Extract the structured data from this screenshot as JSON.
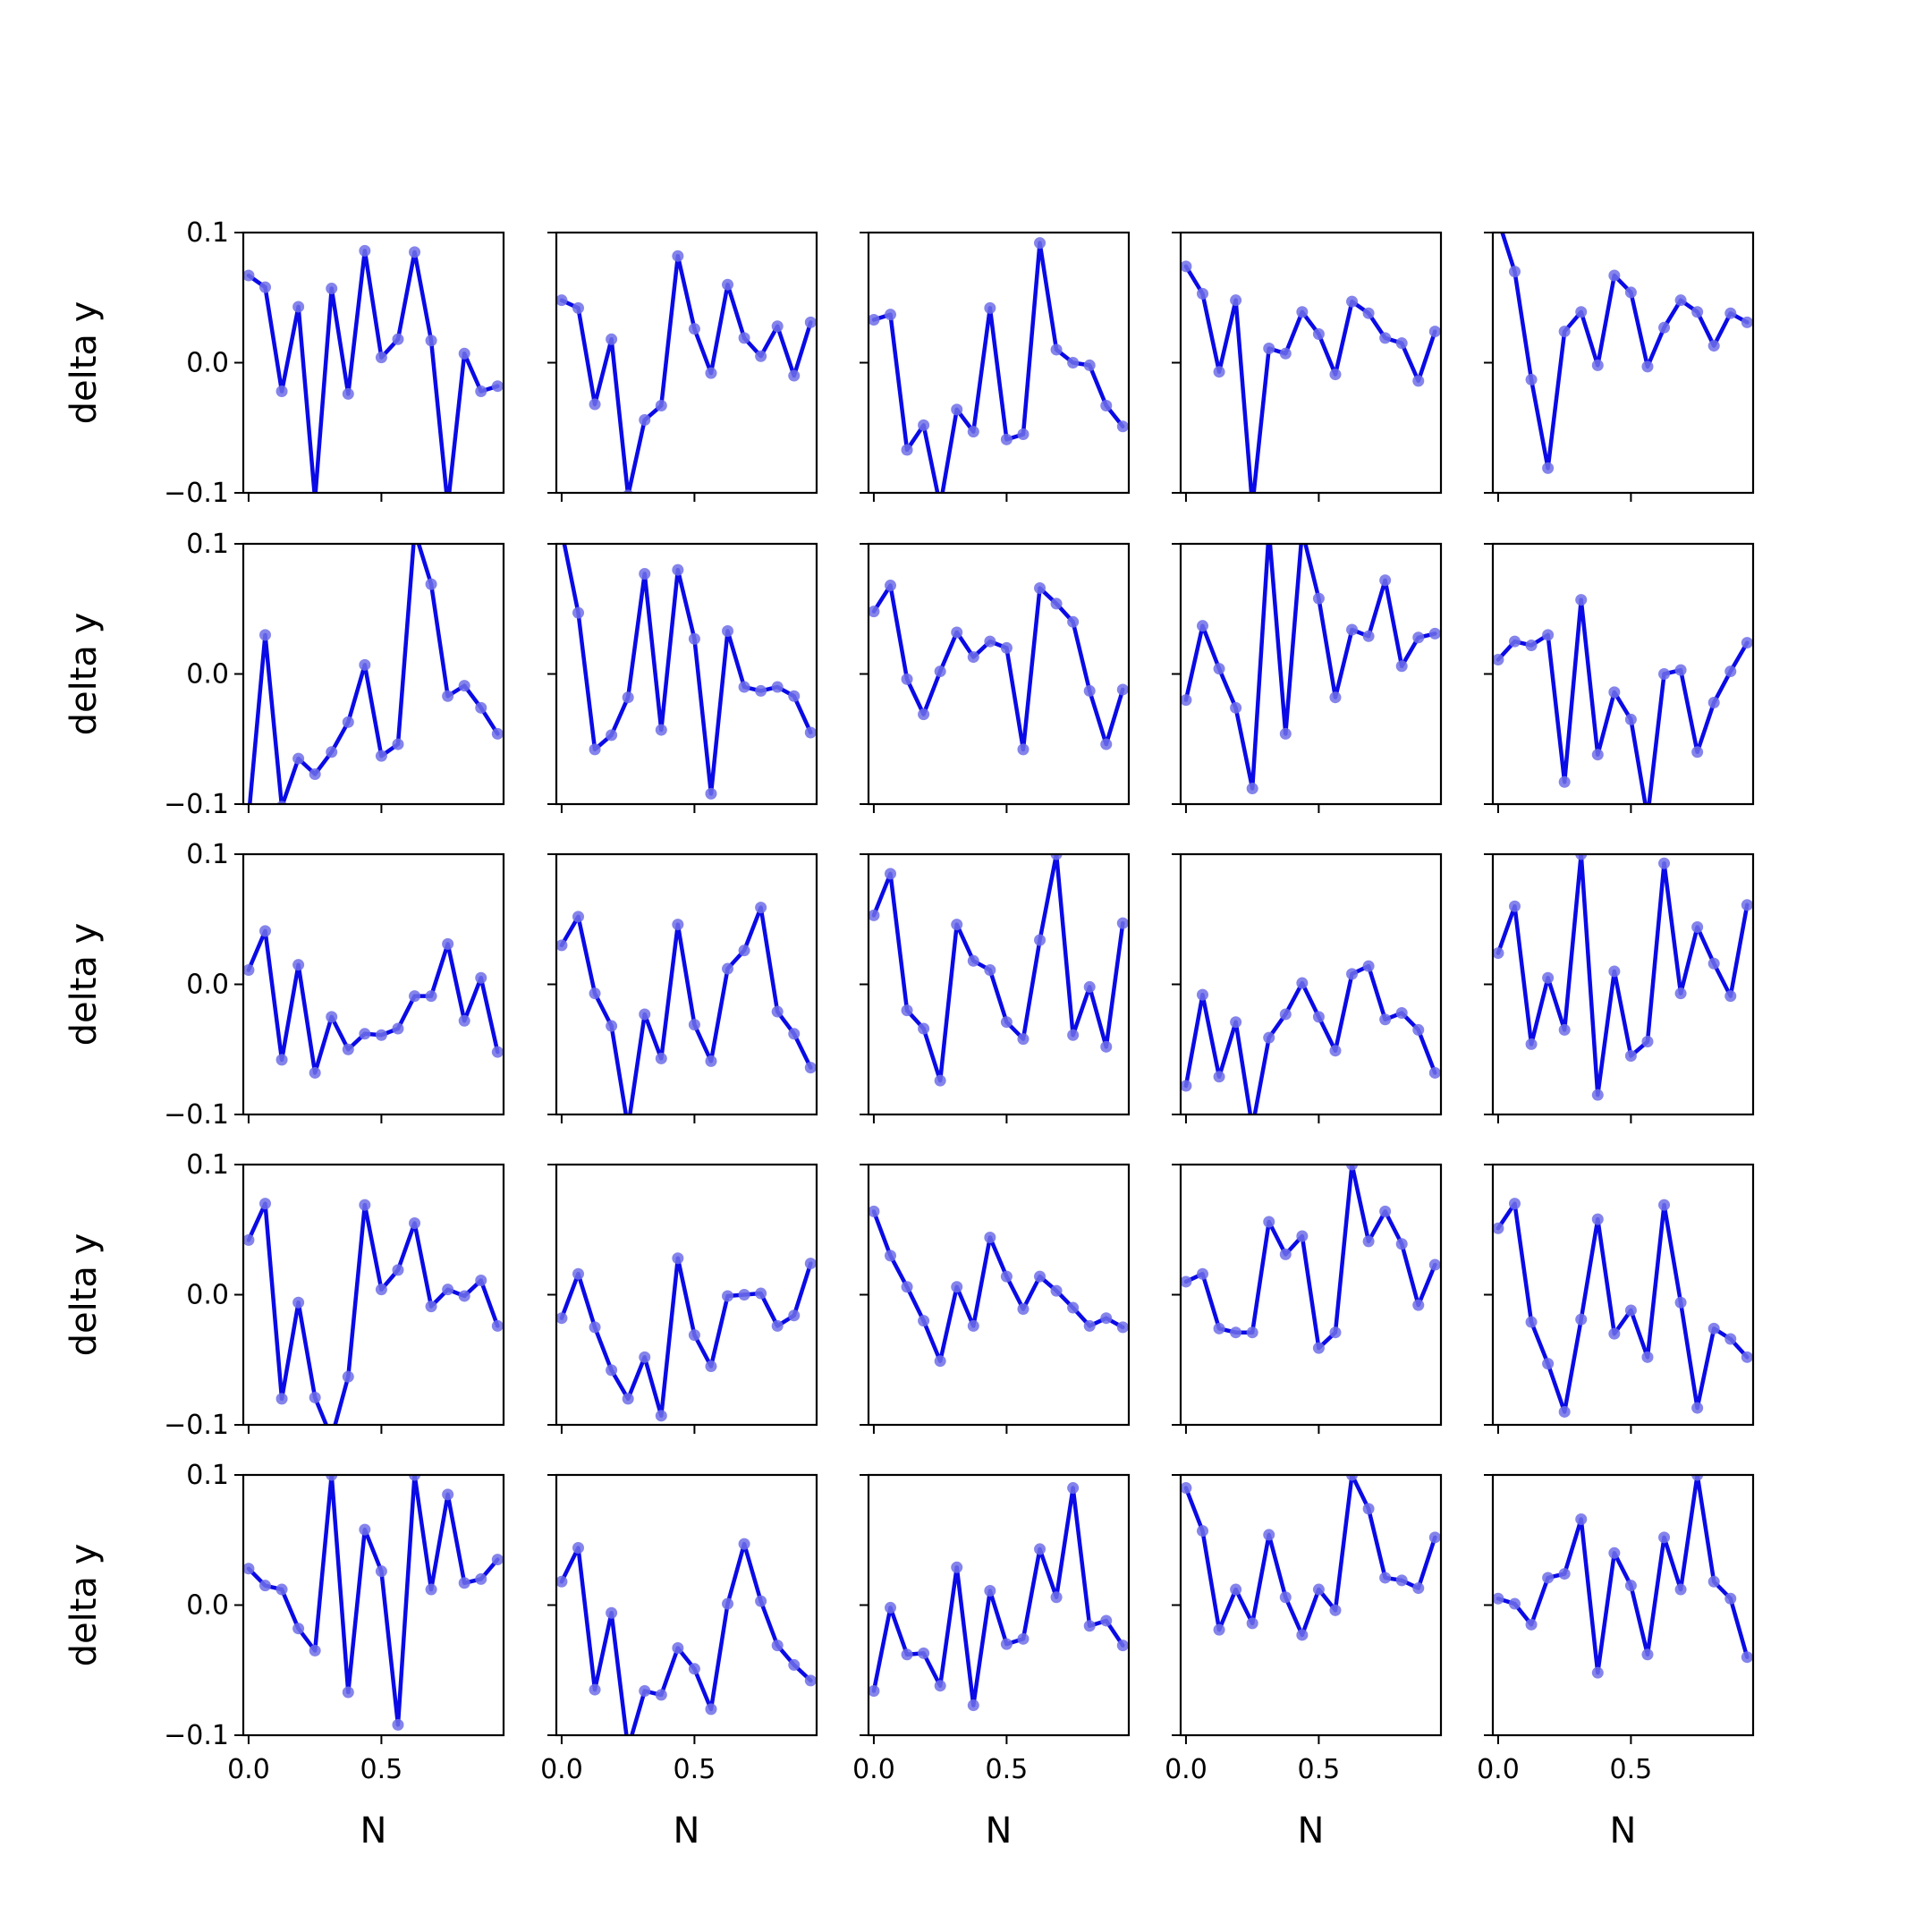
{
  "chart_data": {
    "type": "line",
    "layout": {
      "rows": 5,
      "cols": 5
    },
    "x": [
      0.0,
      0.0625,
      0.125,
      0.1875,
      0.25,
      0.3125,
      0.375,
      0.4375,
      0.5,
      0.5625,
      0.625,
      0.6875,
      0.75,
      0.8125,
      0.875,
      0.9375
    ],
    "xlim": [
      -0.02,
      0.96
    ],
    "ylim": [
      -0.1,
      0.1
    ],
    "xticks": [
      0.0,
      0.5
    ],
    "xtick_labels": [
      "0.0",
      "0.5"
    ],
    "yticks": [
      -0.1,
      0.0,
      0.1
    ],
    "ytick_labels": [
      "−0.1",
      "0.0",
      "0.1"
    ],
    "xlabel": "N",
    "ylabel": "delta y",
    "line_color": "#0a0ae6",
    "marker_color": "#6f6fe8",
    "grid": false,
    "legend": "none",
    "panels": [
      {
        "values": [
          0.067,
          0.058,
          -0.022,
          0.043,
          -0.105,
          0.057,
          -0.024,
          0.086,
          0.004,
          0.018,
          0.085,
          0.017,
          -0.11,
          0.007,
          -0.022,
          -0.018
        ]
      },
      {
        "values": [
          0.048,
          0.042,
          -0.032,
          0.018,
          -0.102,
          -0.044,
          -0.033,
          0.082,
          0.026,
          -0.008,
          0.06,
          0.019,
          0.005,
          0.028,
          -0.01,
          0.031
        ]
      },
      {
        "values": [
          0.033,
          0.037,
          -0.067,
          -0.048,
          -0.11,
          -0.036,
          -0.053,
          0.042,
          -0.059,
          -0.055,
          0.092,
          0.01,
          0.0,
          -0.002,
          -0.033,
          -0.049
        ]
      },
      {
        "values": [
          0.074,
          0.053,
          -0.007,
          0.048,
          -0.11,
          0.011,
          0.007,
          0.039,
          0.022,
          -0.009,
          0.047,
          0.038,
          0.019,
          0.015,
          -0.014,
          0.024
        ]
      },
      {
        "values": [
          0.11,
          0.07,
          -0.013,
          -0.081,
          0.024,
          0.039,
          -0.002,
          0.067,
          0.054,
          -0.003,
          0.027,
          0.048,
          0.039,
          0.013,
          0.038,
          0.031
        ]
      },
      {
        "values": [
          -0.11,
          0.03,
          -0.102,
          -0.065,
          -0.077,
          -0.06,
          -0.037,
          0.007,
          -0.063,
          -0.054,
          0.11,
          0.069,
          -0.017,
          -0.009,
          -0.026,
          -0.046
        ]
      },
      {
        "values": [
          0.11,
          0.047,
          -0.058,
          -0.047,
          -0.018,
          0.077,
          -0.043,
          0.08,
          0.027,
          -0.092,
          0.033,
          -0.01,
          -0.013,
          -0.01,
          -0.017,
          -0.045
        ]
      },
      {
        "values": [
          0.048,
          0.068,
          -0.004,
          -0.031,
          0.002,
          0.032,
          0.013,
          0.025,
          0.02,
          -0.058,
          0.066,
          0.054,
          0.04,
          -0.013,
          -0.054,
          -0.012
        ]
      },
      {
        "values": [
          -0.02,
          0.037,
          0.004,
          -0.026,
          -0.088,
          0.11,
          -0.046,
          0.11,
          0.058,
          -0.018,
          0.034,
          0.029,
          0.072,
          0.006,
          0.028,
          0.031
        ]
      },
      {
        "values": [
          0.011,
          0.025,
          0.022,
          0.03,
          -0.083,
          0.057,
          -0.062,
          -0.014,
          -0.035,
          -0.11,
          0.0,
          0.003,
          -0.06,
          -0.022,
          0.002,
          0.024
        ]
      },
      {
        "values": [
          0.011,
          0.041,
          -0.058,
          0.015,
          -0.068,
          -0.025,
          -0.05,
          -0.038,
          -0.039,
          -0.034,
          -0.009,
          -0.009,
          0.031,
          -0.028,
          0.005,
          -0.052
        ]
      },
      {
        "values": [
          0.03,
          0.052,
          -0.007,
          -0.032,
          -0.11,
          -0.023,
          -0.057,
          0.046,
          -0.031,
          -0.059,
          0.012,
          0.026,
          0.059,
          -0.021,
          -0.038,
          -0.064
        ]
      },
      {
        "values": [
          0.053,
          0.085,
          -0.02,
          -0.034,
          -0.074,
          0.046,
          0.018,
          0.011,
          -0.029,
          -0.042,
          0.034,
          0.1,
          -0.039,
          -0.002,
          -0.048,
          0.047
        ]
      },
      {
        "values": [
          -0.078,
          -0.008,
          -0.071,
          -0.029,
          -0.11,
          -0.041,
          -0.023,
          0.001,
          -0.025,
          -0.051,
          0.008,
          0.014,
          -0.027,
          -0.022,
          -0.035,
          -0.068
        ]
      },
      {
        "values": [
          0.024,
          0.06,
          -0.046,
          0.005,
          -0.035,
          0.1,
          -0.085,
          0.01,
          -0.055,
          -0.044,
          0.093,
          -0.007,
          0.044,
          0.016,
          -0.009,
          0.061
        ]
      },
      {
        "values": [
          0.042,
          0.07,
          -0.08,
          -0.006,
          -0.079,
          -0.11,
          -0.063,
          0.069,
          0.004,
          0.019,
          0.055,
          -0.009,
          0.004,
          -0.001,
          0.011,
          -0.024
        ]
      },
      {
        "values": [
          -0.018,
          0.016,
          -0.025,
          -0.058,
          -0.08,
          -0.048,
          -0.093,
          0.028,
          -0.031,
          -0.055,
          -0.001,
          0.0,
          0.001,
          -0.024,
          -0.016,
          0.024
        ]
      },
      {
        "values": [
          0.064,
          0.03,
          0.006,
          -0.02,
          -0.051,
          0.006,
          -0.024,
          0.044,
          0.014,
          -0.011,
          0.014,
          0.003,
          -0.01,
          -0.024,
          -0.018,
          -0.025
        ]
      },
      {
        "values": [
          0.01,
          0.016,
          -0.026,
          -0.029,
          -0.029,
          0.056,
          0.031,
          0.045,
          -0.041,
          -0.029,
          0.1,
          0.041,
          0.064,
          0.039,
          -0.008,
          0.023
        ]
      },
      {
        "values": [
          0.051,
          0.07,
          -0.021,
          -0.053,
          -0.09,
          -0.019,
          0.058,
          -0.03,
          -0.012,
          -0.048,
          0.069,
          -0.006,
          -0.087,
          -0.026,
          -0.034,
          -0.048
        ]
      },
      {
        "values": [
          0.028,
          0.015,
          0.012,
          -0.018,
          -0.035,
          0.1,
          -0.067,
          0.058,
          0.026,
          -0.092,
          0.1,
          0.012,
          0.085,
          0.017,
          0.02,
          0.035
        ]
      },
      {
        "values": [
          0.018,
          0.044,
          -0.065,
          -0.006,
          -0.11,
          -0.066,
          -0.069,
          -0.033,
          -0.049,
          -0.08,
          0.001,
          0.047,
          0.003,
          -0.031,
          -0.046,
          -0.058
        ]
      },
      {
        "values": [
          -0.066,
          -0.002,
          -0.038,
          -0.037,
          -0.062,
          0.029,
          -0.077,
          0.011,
          -0.03,
          -0.026,
          0.043,
          0.006,
          0.09,
          -0.016,
          -0.012,
          -0.031
        ]
      },
      {
        "values": [
          0.09,
          0.057,
          -0.019,
          0.012,
          -0.014,
          0.054,
          0.006,
          -0.023,
          0.012,
          -0.004,
          0.1,
          0.074,
          0.021,
          0.019,
          0.013,
          0.052
        ]
      },
      {
        "values": [
          0.005,
          0.001,
          -0.015,
          0.021,
          0.024,
          0.066,
          -0.052,
          0.04,
          0.015,
          -0.038,
          0.052,
          0.012,
          0.1,
          0.018,
          0.005,
          -0.04
        ]
      }
    ]
  }
}
